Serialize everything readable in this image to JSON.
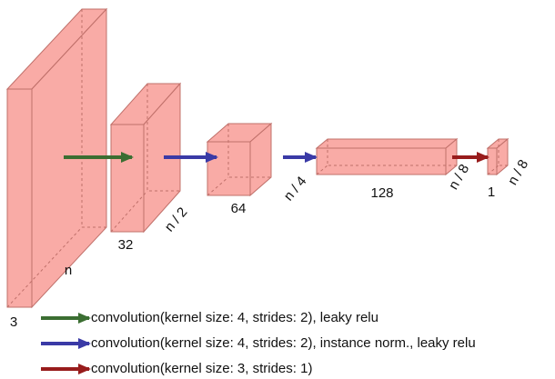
{
  "blocks": [
    {
      "depth": "3",
      "size": "n"
    },
    {
      "depth": "32",
      "size": "n / 2"
    },
    {
      "depth": "64",
      "size": "n / 4"
    },
    {
      "depth": "128",
      "size": "n / 8"
    },
    {
      "depth": "1",
      "size": "n / 8"
    }
  ],
  "legend": [
    {
      "label": "convolution(kernel size: 4, strides: 2), leaky relu",
      "color": "#3b6e32"
    },
    {
      "label": "convolution(kernel size: 4, strides: 2), instance norm., leaky relu",
      "color": "#3a3aa6"
    },
    {
      "label": "convolution(kernel size: 3, strides: 1)",
      "color": "#981c1c"
    }
  ]
}
